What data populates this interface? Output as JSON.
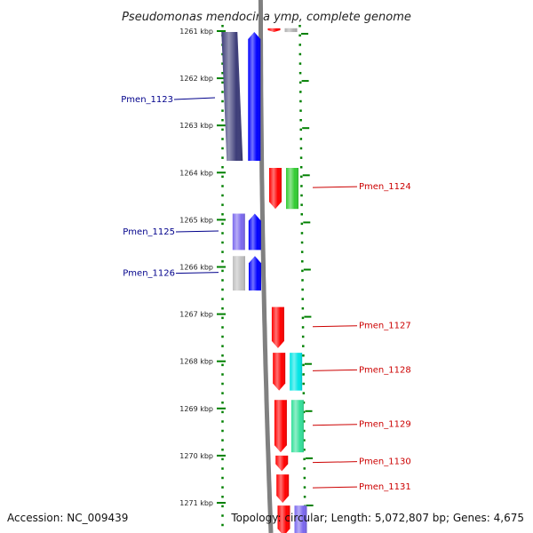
{
  "header": {
    "title": "Pseudomonas mendocina ymp, complete genome"
  },
  "footer": {
    "accession": "Accession: NC_009439",
    "topology": "Topology: circular; Length: 5,072,807 bp; Genes: 4,675"
  },
  "colors": {
    "backbone": "#808080",
    "scale": "#008000",
    "label_left": "#00008b",
    "label_right": "#cc0000"
  },
  "scale": {
    "ticks": [
      {
        "kbp": 1261,
        "label": "1261 kbp"
      },
      {
        "kbp": 1262,
        "label": "1262 kbp"
      },
      {
        "kbp": 1263,
        "label": "1263 kbp"
      },
      {
        "kbp": 1264,
        "label": "1264 kbp"
      },
      {
        "kbp": 1265,
        "label": "1265 kbp"
      },
      {
        "kbp": 1266,
        "label": "1266 kbp"
      },
      {
        "kbp": 1267,
        "label": "1267 kbp"
      },
      {
        "kbp": 1268,
        "label": "1268 kbp"
      },
      {
        "kbp": 1269,
        "label": "1269 kbp"
      },
      {
        "kbp": 1270,
        "label": "1270 kbp"
      },
      {
        "kbp": 1271,
        "label": "1271 kbp"
      }
    ]
  },
  "genes": [
    {
      "start_kbp": 1260.94,
      "end_kbp": 1261.02,
      "strand": "+",
      "color": "#ff0000",
      "cog_color": "#b0b0b0"
    },
    {
      "start_kbp": 1261.02,
      "end_kbp": 1263.75,
      "strand": "-",
      "color": "#0000ff",
      "cog_color": "#3c3c78"
    },
    {
      "start_kbp": 1263.9,
      "end_kbp": 1264.77,
      "strand": "+",
      "color": "#ff0000",
      "cog_color": "#33cc33",
      "label": "Pmen_1124"
    },
    {
      "start_kbp": 1264.87,
      "end_kbp": 1265.64,
      "strand": "-",
      "color": "#0000ff",
      "cog_color": "#7b68ee",
      "label": "Pmen_1125"
    },
    {
      "start_kbp": 1265.77,
      "end_kbp": 1266.5,
      "strand": "-",
      "color": "#0000ff",
      "cog_color": "#c0c0c0",
      "label": "Pmen_1126"
    },
    {
      "start_kbp": 1266.85,
      "end_kbp": 1267.72,
      "strand": "+",
      "color": "#ff0000",
      "label": "Pmen_1127"
    },
    {
      "start_kbp": 1267.82,
      "end_kbp": 1268.62,
      "strand": "+",
      "color": "#ff0000",
      "cog_color": "#00e5e5",
      "label": "Pmen_1128"
    },
    {
      "start_kbp": 1268.82,
      "end_kbp": 1269.93,
      "strand": "+",
      "color": "#ff0000",
      "cog_color": "#33e09a",
      "label": "Pmen_1129"
    },
    {
      "start_kbp": 1270.0,
      "end_kbp": 1270.33,
      "strand": "+",
      "color": "#ff0000",
      "label": "Pmen_1130"
    },
    {
      "start_kbp": 1270.4,
      "end_kbp": 1271.0,
      "strand": "+",
      "color": "#ff0000",
      "label": "Pmen_1131"
    },
    {
      "start_kbp": 1271.06,
      "end_kbp": 1271.7,
      "strand": "+",
      "color": "#ff0000",
      "cog_color": "#7b68ee"
    }
  ],
  "left_labels": [
    {
      "text": "Pmen_1123",
      "kbp": 1262.45
    }
  ]
}
